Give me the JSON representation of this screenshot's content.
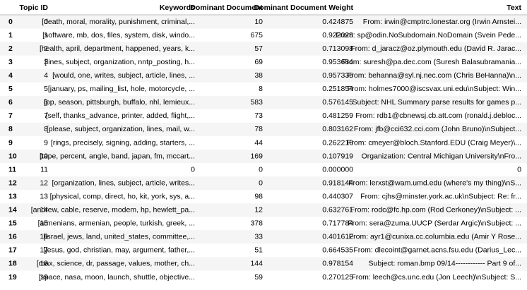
{
  "table": {
    "header": [
      "Topic ID",
      "Keywords",
      "Dominant Document",
      "Dominant Document Weight",
      "Text"
    ],
    "rows": [
      {
        "index": "0",
        "cells": [
          "0",
          "[death, moral, morality, punishment, criminal,...",
          "10",
          "0.424875",
          "From: irwin@cmptrc.lonestar.org (Irwin Arnstei..."
        ]
      },
      {
        "index": "1",
        "cells": [
          "1",
          "[software, mb, dos, files, system, disk, windo...",
          "675",
          "0.922028",
          "From: sp@odin.NoSubdomain.NoDomain (Svein Pede..."
        ]
      },
      {
        "index": "2",
        "cells": [
          "2",
          "[health, april, department, happened, years, k...",
          "57",
          "0.713098",
          "From: d_jaracz@oz.plymouth.edu (David R. Jarac..."
        ]
      },
      {
        "index": "3",
        "cells": [
          "3",
          "[lines, subject, organization, nntp_posting, h...",
          "69",
          "0.953684",
          "From: suresh@pa.dec.com (Suresh Balasubramania..."
        ]
      },
      {
        "index": "4",
        "cells": [
          "4",
          "[would, one, writes, subject, article, lines, ...",
          "38",
          "0.957335",
          "From: behanna@syl.nj.nec.com (Chris BeHanna)\\n..."
        ]
      },
      {
        "index": "5",
        "cells": [
          "5",
          "[january, ps, mailing_list, hole, motorcycle, ...",
          "8",
          "0.251854",
          "From: holmes7000@iscsvax.uni.edu\\nSubject: Win..."
        ]
      },
      {
        "index": "6",
        "cells": [
          "6",
          "[pp, season, pittsburgh, buffalo, nhl, lemieux...",
          "583",
          "0.576145",
          "Subject: NHL Summary parse results for games p..."
        ]
      },
      {
        "index": "7",
        "cells": [
          "7",
          "[self, thanks_advance, printer, added, flight,...",
          "73",
          "0.481259",
          "From: rdb1@cbnewsj.cb.att.com (ronald.j.debloc..."
        ]
      },
      {
        "index": "8",
        "cells": [
          "8",
          "[please, subject, organization, lines, mail, w...",
          "78",
          "0.803162",
          "From: jfb@cci632.cci.com (John Bruno)\\nSubject..."
        ]
      },
      {
        "index": "9",
        "cells": [
          "9",
          "[rings, precisely, signing, adding, starters, ...",
          "44",
          "0.262216",
          "From: cmeyer@bloch.Stanford.EDU (Craig Meyer)\\..."
        ]
      },
      {
        "index": "10",
        "cells": [
          "10",
          "[tape, percent, angle, band, japan, fm, mccart...",
          "169",
          "0.107919",
          "Organization: Central Michigan University\\nFro..."
        ]
      },
      {
        "index": "11",
        "cells": [
          "11",
          "0",
          "0",
          "0.000000",
          "0"
        ]
      },
      {
        "index": "12",
        "cells": [
          "12",
          "[organization, lines, subject, article, writes...",
          "0",
          "0.918144",
          "From: lerxst@wam.umd.edu (where's my thing)\\nS..."
        ]
      },
      {
        "index": "13",
        "cells": [
          "13",
          "[physical, comp, direct, ho, kit, york, sys, a...",
          "98",
          "0.440307",
          "From: cjhs@minster.york.ac.uk\\nSubject: Re: fr..."
        ]
      },
      {
        "index": "14",
        "cells": [
          "14",
          "[andrew, cable, reserve, modem, hp, hewlett_pa...",
          "12",
          "0.632761",
          "From: rodc@fc.hp.com (Rod Cerkoney)\\nSubject: ..."
        ]
      },
      {
        "index": "15",
        "cells": [
          "15",
          "[armenians, armenian, people, turkish, greek, ...",
          "378",
          "0.717784",
          "From: sera@zuma.UUCP (Serdar Argic)\\nSubject: ..."
        ]
      },
      {
        "index": "16",
        "cells": [
          "16",
          "[israel, jews, land, united_states, committee,...",
          "33",
          "0.401612",
          "From: ayr1@cunixa.cc.columbia.edu (Amir Y Rose..."
        ]
      },
      {
        "index": "17",
        "cells": [
          "17",
          "[jesus, god, christian, may, argument, father,...",
          "51",
          "0.664535",
          "From: dlecoint@garnet.acns.fsu.edu (Darius_Lec..."
        ]
      },
      {
        "index": "18",
        "cells": [
          "18",
          "[max, science, dr, passage, values, mother, ch...",
          "144",
          "0.978154",
          "Subject: roman.bmp 09/14------------ Part 9 of..."
        ]
      },
      {
        "index": "19",
        "cells": [
          "19",
          "[space, nasa, moon, launch, shuttle, objective...",
          "59",
          "0.270125",
          "From: leech@cs.unc.edu (Jon Leech)\\nSubject: S..."
        ]
      }
    ]
  }
}
